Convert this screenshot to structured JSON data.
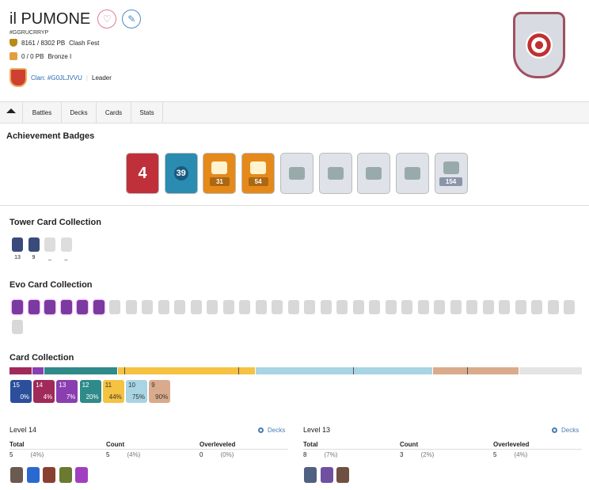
{
  "player": {
    "name": "il PUMONE",
    "tag": "#GGRUCRRYP",
    "trophies": "8161 / 8302 PB",
    "league": "Clash Fest",
    "ranked": "0 / 0 PB",
    "ranked_league": "Bronze I",
    "clan": "Clan: #G0JLJVVU",
    "role": "Leader"
  },
  "tabs": [
    {
      "label": ""
    },
    {
      "label": "Battles"
    },
    {
      "label": "Decks"
    },
    {
      "label": "Cards"
    },
    {
      "label": "Stats"
    }
  ],
  "sections": {
    "achievements": "Achievement Badges",
    "tower": "Tower Card Collection",
    "evo": "Evo Card Collection",
    "cards": "Card Collection"
  },
  "badges": [
    {
      "label": "4",
      "color": "#c0303a"
    },
    {
      "label": "39",
      "color": "#2a8cb0"
    },
    {
      "label": "31",
      "color": "#e58a1a"
    },
    {
      "label": "54",
      "color": "#e58a1a"
    },
    {
      "label": "",
      "color": "#dfe2e8"
    },
    {
      "label": "",
      "color": "#dfe2e8"
    },
    {
      "label": "",
      "color": "#dfe2e8"
    },
    {
      "label": "",
      "color": "#dfe2e8"
    },
    {
      "label": "154",
      "color": "#dfe2e8"
    }
  ],
  "tower_cards": [
    {
      "level": "13",
      "owned": true
    },
    {
      "level": "9",
      "owned": true
    },
    {
      "level": "_",
      "owned": false
    },
    {
      "level": "_",
      "owned": false
    }
  ],
  "evo": {
    "owned": 6,
    "total": 36
  },
  "levels": [
    {
      "level": "15",
      "pct": "0%",
      "color": "#2b4f9b"
    },
    {
      "level": "14",
      "pct": "4%",
      "color": "#a02a5a"
    },
    {
      "level": "13",
      "pct": "7%",
      "color": "#8a3fb0"
    },
    {
      "level": "12",
      "pct": "20%",
      "color": "#2f8a8a"
    },
    {
      "level": "11",
      "pct": "44%",
      "color": "#f5c242"
    },
    {
      "level": "10",
      "pct": "75%",
      "color": "#a8d4e4"
    },
    {
      "level": "9",
      "pct": "90%",
      "color": "#d9ab8c"
    }
  ],
  "level_tables": [
    {
      "title": "Level 14",
      "decks": "Decks",
      "headers": [
        "Total",
        "Count",
        "Overleveled"
      ],
      "values": [
        [
          "5",
          "(4%)"
        ],
        [
          "5",
          "(4%)"
        ],
        [
          "0",
          "(0%)"
        ]
      ],
      "cards": [
        "#6a5a50",
        "#2a6ad0",
        "#8a4030",
        "#6a7a30",
        "#a040c0"
      ]
    },
    {
      "title": "Level 13",
      "decks": "Decks",
      "headers": [
        "Total",
        "Count",
        "Overleveled"
      ],
      "values": [
        [
          "8",
          "(7%)"
        ],
        [
          "3",
          "(2%)"
        ],
        [
          "5",
          "(4%)"
        ]
      ],
      "cards": [
        "#506080",
        "#7050a0",
        "#705040"
      ]
    }
  ]
}
